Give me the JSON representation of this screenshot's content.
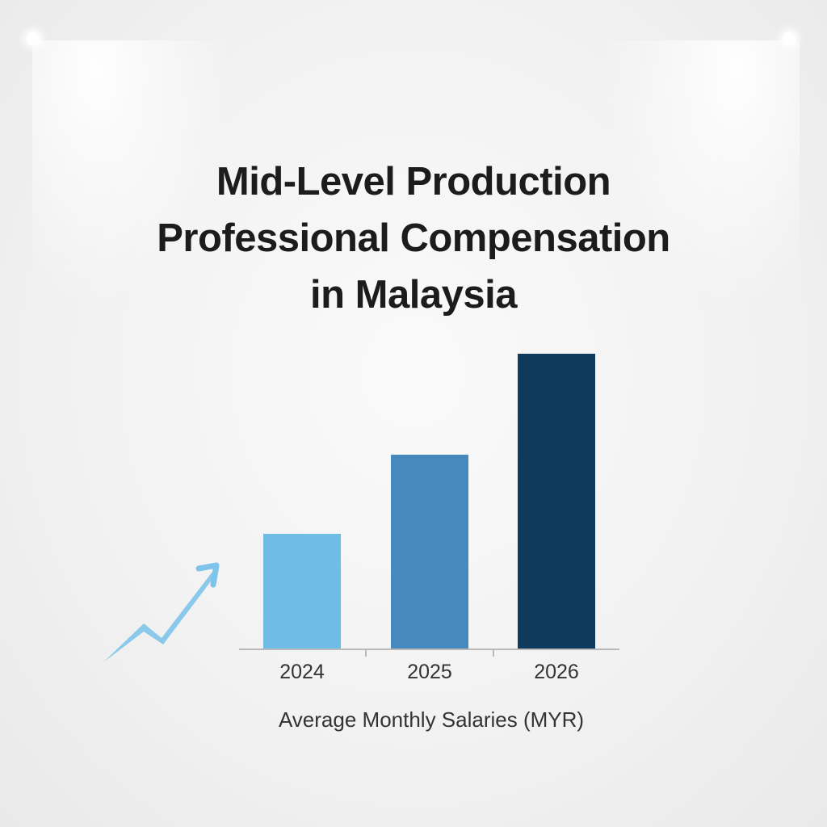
{
  "chart_data": {
    "type": "bar",
    "title": "Mid-Level Production Professional Compensation in Malaysia",
    "title_lines": [
      "Mid-Level Production",
      "Professional Compensation",
      "in Malaysia"
    ],
    "categories": [
      "2024",
      "2025",
      "2026"
    ],
    "values": [
      143,
      241,
      366
    ],
    "value_note": "relative bar heights in pixels; no y-axis or numeric labels shown",
    "colors": [
      "#6fbde6",
      "#4789bd",
      "#0e3a5e"
    ],
    "xlabel": "Average Monthly Salaries (MYR)",
    "ylabel": "",
    "grid": false,
    "legend": null
  },
  "decorations": {
    "trend_arrow_color": "#7ec4ea",
    "icon": "trend-up-arrow-icon"
  }
}
